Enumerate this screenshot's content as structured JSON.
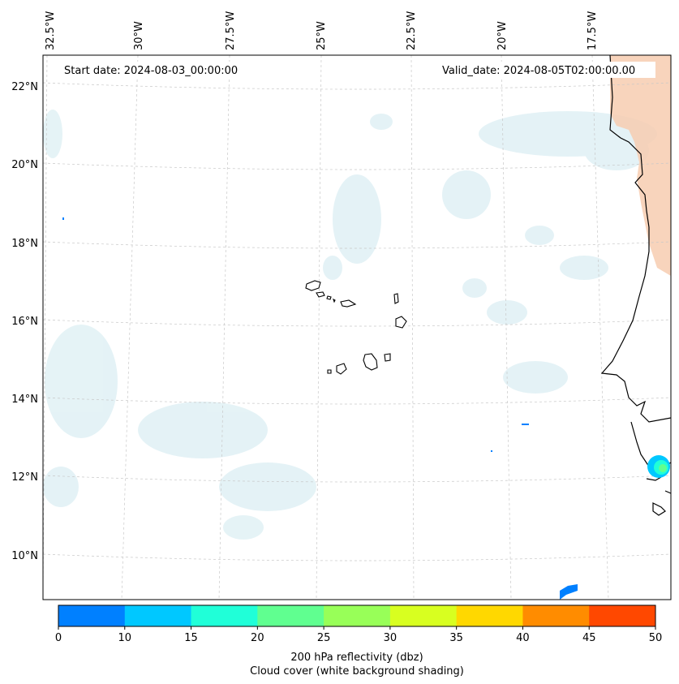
{
  "map": {
    "start_date": "Start date: 2024-08-03_00:00:00",
    "valid_date": "Valid_date: 2024-08-05T02:00:00.00",
    "lon_labels": [
      "32.5°W",
      "30°W",
      "27.5°W",
      "25°W",
      "22.5°W",
      "20°W",
      "17.5°W"
    ],
    "lat_labels": [
      "22°N",
      "20°N",
      "18°N",
      "16°N",
      "14°N",
      "12°N",
      "10°N"
    ]
  },
  "colorbar": {
    "ticks": [
      "0",
      "10",
      "15",
      "20",
      "25",
      "30",
      "35",
      "40",
      "45",
      "50"
    ],
    "colors": [
      "#0080ff",
      "#00c8ff",
      "#20ffd8",
      "#60ff90",
      "#98ff58",
      "#d8ff20",
      "#ffd800",
      "#ff8c00",
      "#ff4800"
    ],
    "label_line1": "200 hPa reflectivity (dbz)",
    "label_line2": "Cloud cover (white background shading)"
  },
  "colors": {
    "cloud": "#cfe9ef",
    "land_warm": "#f7cdb0",
    "coast": "#000000",
    "grid": "#c8c8c8"
  }
}
